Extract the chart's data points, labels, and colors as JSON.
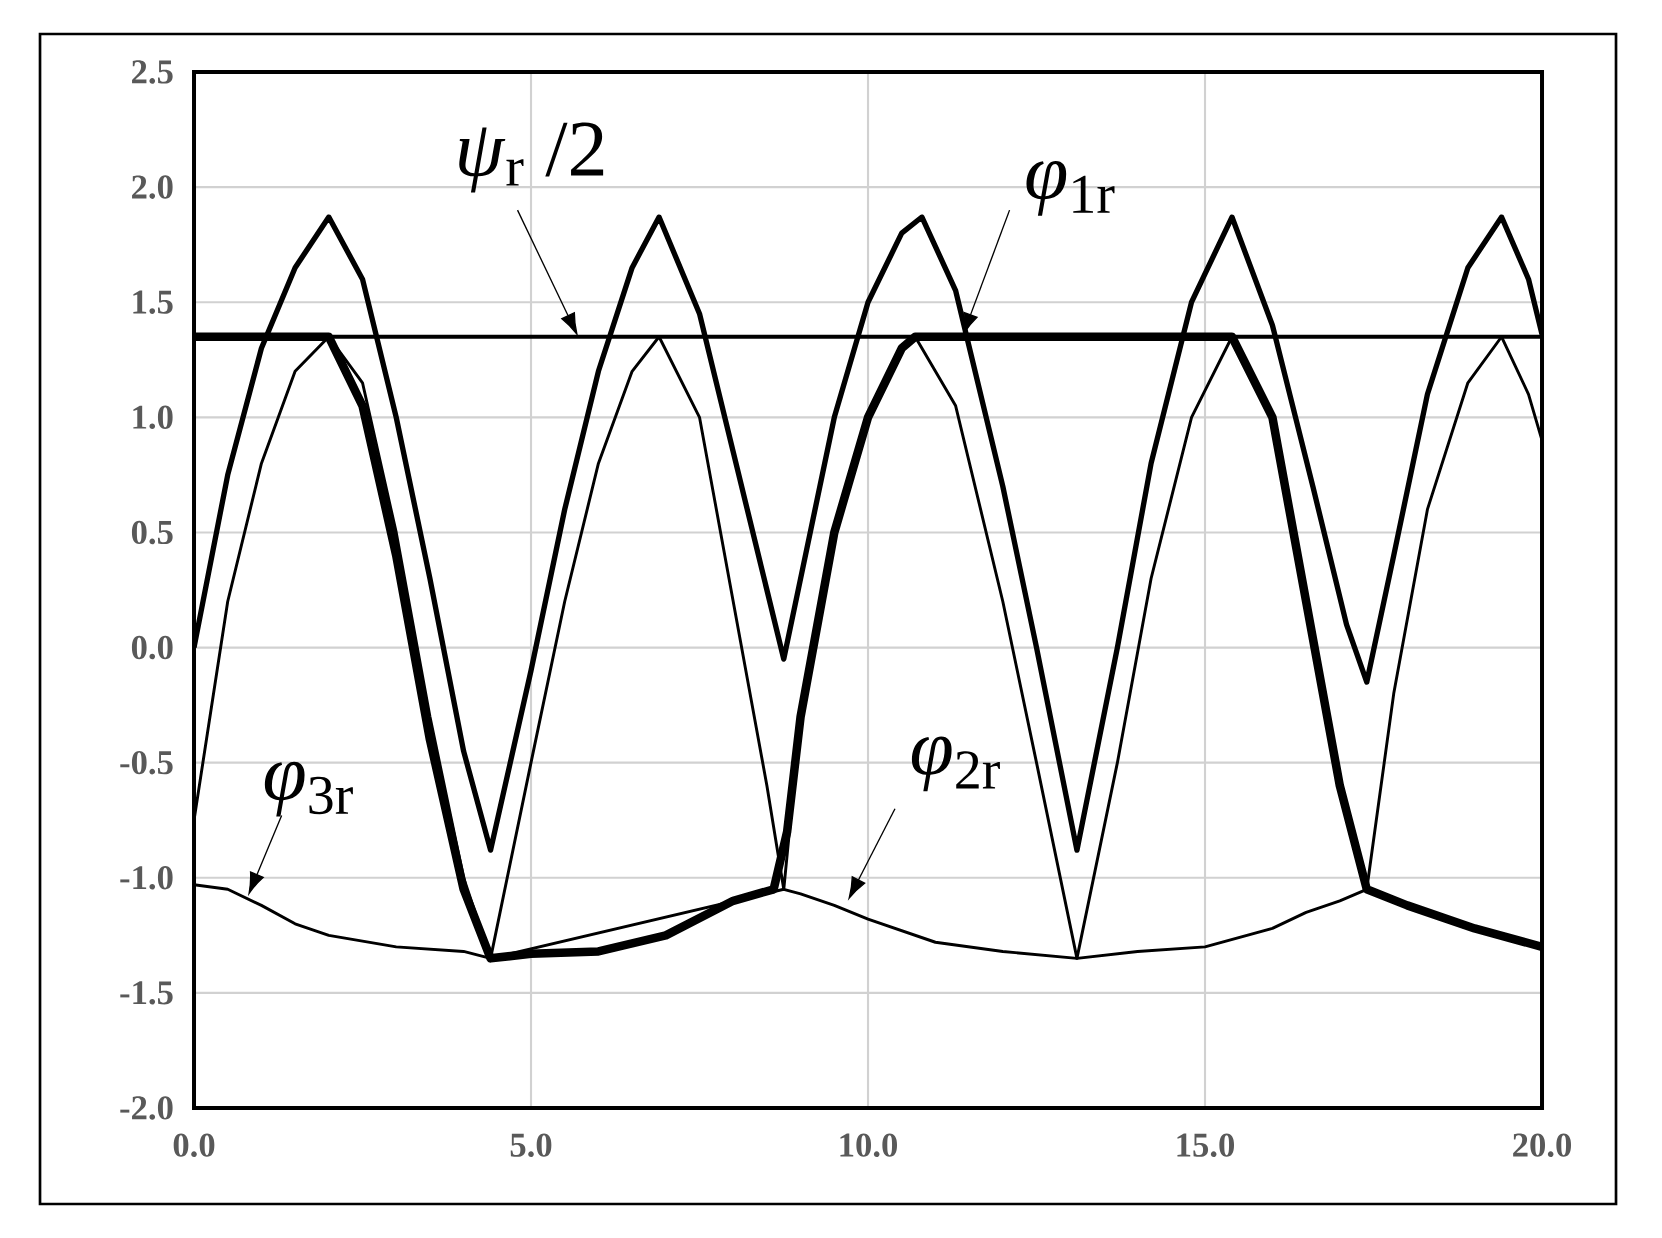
{
  "chart_data": {
    "type": "line",
    "xlim": [
      0,
      20
    ],
    "ylim": [
      -2,
      2.5
    ],
    "xticks": [
      {
        "value": 0,
        "label": "0.0"
      },
      {
        "value": 5,
        "label": "5.0"
      },
      {
        "value": 10,
        "label": "10.0"
      },
      {
        "value": 15,
        "label": "15.0"
      },
      {
        "value": 20,
        "label": "20.0"
      }
    ],
    "yticks": [
      {
        "value": -2,
        "label": "-2.0"
      },
      {
        "value": -1.5,
        "label": "-1.5"
      },
      {
        "value": -1,
        "label": "-1.0"
      },
      {
        "value": -0.5,
        "label": "-0.5"
      },
      {
        "value": 0,
        "label": "0.0"
      },
      {
        "value": 0.5,
        "label": "0.5"
      },
      {
        "value": 1,
        "label": "1.0"
      },
      {
        "value": 1.5,
        "label": "1.5"
      },
      {
        "value": 2,
        "label": "2.0"
      },
      {
        "value": 2.5,
        "label": "2.5"
      }
    ],
    "grid": true,
    "marker": "none",
    "line_style": "solid",
    "series": [
      {
        "color": "#000000",
        "x": [
          0,
          0.5,
          1,
          1.5,
          2.0,
          2.5,
          3,
          3.5,
          4,
          4.4,
          5,
          5.5,
          6,
          6.5,
          6.9,
          7.5,
          8,
          8.5,
          8.75,
          9,
          9.5,
          10,
          10.5,
          10.8,
          11.3,
          12,
          12.5,
          13.1,
          13.7,
          14.2,
          14.8,
          15.4,
          16,
          16.6,
          17.1,
          17.4,
          17.8,
          18.3,
          18.9,
          19.4,
          19.8,
          20
        ],
        "values": [
          0.0,
          0.75,
          1.3,
          1.65,
          1.87,
          1.6,
          1.0,
          0.3,
          -0.45,
          -0.88,
          -0.1,
          0.6,
          1.2,
          1.65,
          1.87,
          1.45,
          0.85,
          0.25,
          -0.05,
          0.3,
          1.0,
          1.5,
          1.8,
          1.87,
          1.55,
          0.7,
          0.0,
          -0.88,
          0.0,
          0.8,
          1.5,
          1.87,
          1.4,
          0.7,
          0.1,
          -0.15,
          0.4,
          1.1,
          1.65,
          1.87,
          1.6,
          1.36
        ]
      },
      {
        "color": "#000000",
        "x": [
          0,
          2.0,
          2.5,
          3,
          3.5,
          4,
          4.4,
          5,
          6,
          7,
          8,
          8.6,
          8.8,
          9,
          9.5,
          10,
          10.5,
          10.7,
          15.4,
          16,
          16.5,
          17,
          17.4,
          18,
          19,
          20
        ],
        "values": [
          1.35,
          1.35,
          1.05,
          0.4,
          -0.4,
          -1.05,
          -1.35,
          -1.33,
          -1.32,
          -1.25,
          -1.1,
          -1.05,
          -0.8,
          -0.3,
          0.5,
          1.0,
          1.3,
          1.35,
          1.35,
          1.0,
          0.2,
          -0.6,
          -1.05,
          -1.12,
          -1.22,
          -1.3
        ]
      },
      {
        "color": "#000000",
        "x": [
          0,
          0.5,
          1,
          1.5,
          2.0,
          2.5,
          3,
          3.5,
          4,
          4.4,
          5,
          5.5,
          6,
          6.5,
          6.9,
          7.5,
          8,
          8.5,
          8.75,
          9,
          9.5,
          10,
          10.5,
          10.7,
          11.3,
          12,
          12.5,
          13.1,
          13.7,
          14.2,
          14.8,
          15.4,
          16,
          16.5,
          17,
          17.4,
          17.8,
          18.3,
          18.9,
          19.4,
          19.8,
          20
        ],
        "values": [
          -0.75,
          0.2,
          0.8,
          1.2,
          1.35,
          1.15,
          0.5,
          -0.3,
          -1.0,
          -1.35,
          -0.5,
          0.2,
          0.8,
          1.2,
          1.35,
          1.0,
          0.2,
          -0.6,
          -1.05,
          -0.3,
          0.5,
          1.0,
          1.3,
          1.35,
          1.05,
          0.2,
          -0.5,
          -1.35,
          -0.5,
          0.3,
          1.0,
          1.35,
          1.0,
          0.2,
          -0.6,
          -1.05,
          -0.2,
          0.6,
          1.15,
          1.35,
          1.1,
          0.9
        ]
      },
      {
        "color": "#000000",
        "x": [
          0,
          0.5,
          1,
          1.5,
          2,
          3,
          4,
          4.4,
          8.75,
          9,
          9.5,
          10,
          11,
          12,
          13.1,
          14,
          15,
          16,
          16.5,
          17,
          17.4
        ],
        "values": [
          -1.03,
          -1.05,
          -1.12,
          -1.2,
          -1.25,
          -1.3,
          -1.32,
          -1.35,
          -1.05,
          -1.07,
          -1.12,
          -1.18,
          -1.28,
          -1.32,
          -1.35,
          -1.32,
          -1.3,
          -1.22,
          -1.15,
          -1.1,
          -1.05
        ]
      }
    ],
    "ref_lines": [
      {
        "axis": "y",
        "value": 1.35,
        "color": "#000000"
      }
    ],
    "annotations": [
      {
        "text": "*ψ*$_{r}$ /2",
        "x": 5.7,
        "y": 1.35
      },
      {
        "text": "*φ*$_{1r}$",
        "x": 11.4,
        "y": 1.35
      },
      {
        "text": "*φ*$_{3r}$",
        "x": 0.8,
        "y": -1.08
      },
      {
        "text": "*φ*$_{2r}$",
        "x": 9.7,
        "y": -1.1
      }
    ]
  }
}
